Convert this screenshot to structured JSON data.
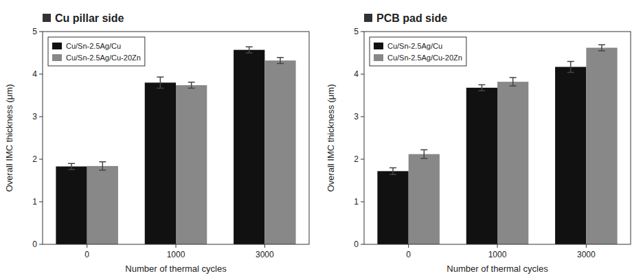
{
  "chart_data": [
    {
      "type": "bar",
      "title": "Cu pillar side",
      "xlabel": "Number of thermal cycles",
      "ylabel": "Overall IMC thickness (μm)",
      "categories": [
        0,
        1000,
        3000
      ],
      "series": [
        {
          "name": "Cu/Sn-2.5Ag/Cu",
          "color": "#111111",
          "values": [
            1.83,
            3.8,
            4.57
          ],
          "errors": [
            0.07,
            0.13,
            0.07
          ]
        },
        {
          "name": "Cu/Sn-2.5Ag/Cu-20Zn",
          "color": "#888888",
          "values": [
            1.84,
            3.74,
            4.32
          ],
          "errors": [
            0.1,
            0.07,
            0.07
          ]
        }
      ],
      "ylim": [
        0,
        5
      ],
      "yticks": [
        0,
        1,
        2,
        3,
        4,
        5
      ],
      "grid": false,
      "legend": "upper left"
    },
    {
      "type": "bar",
      "title": "PCB pad side",
      "xlabel": "Number of thermal cycles",
      "ylabel": "Overall IMC thickness (μm)",
      "categories": [
        0,
        1000,
        3000
      ],
      "series": [
        {
          "name": "Cu/Sn-2.5Ag/Cu",
          "color": "#111111",
          "values": [
            1.72,
            3.68,
            4.17
          ],
          "errors": [
            0.08,
            0.07,
            0.13
          ]
        },
        {
          "name": "Cu/Sn-2.5Ag/Cu-20Zn",
          "color": "#888888",
          "values": [
            2.12,
            3.82,
            4.62
          ],
          "errors": [
            0.1,
            0.1,
            0.07
          ]
        }
      ],
      "ylim": [
        0,
        5
      ],
      "yticks": [
        0,
        1,
        2,
        3,
        4,
        5
      ],
      "grid": false,
      "legend": "upper left"
    }
  ]
}
